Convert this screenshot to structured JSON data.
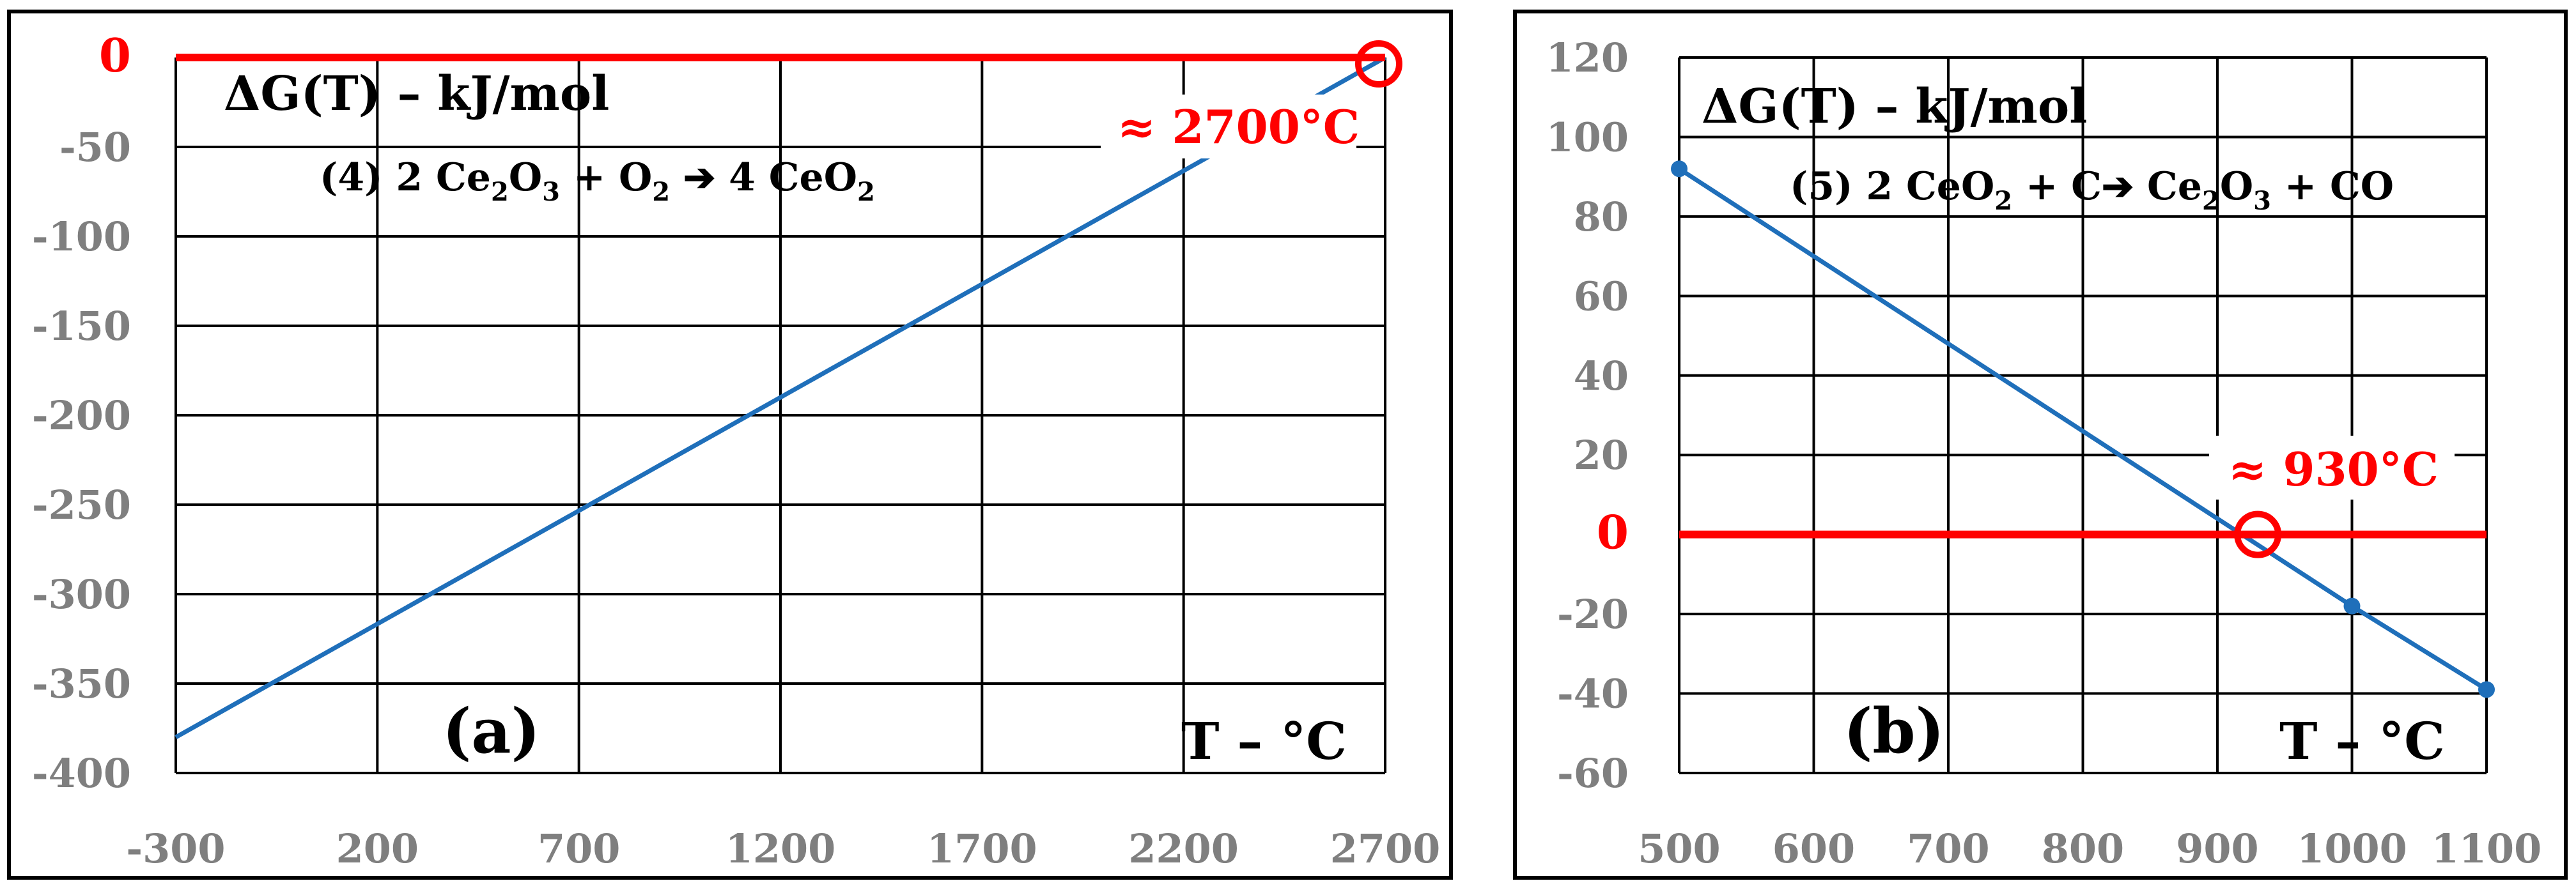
{
  "colors": {
    "series": "#1f6fba",
    "zero_line": "#ff0000",
    "grid": "#000000",
    "tick": "#7f7f7f",
    "annotation": "#ff0000"
  },
  "chart_data": [
    {
      "type": "line",
      "panel_label": "(a)",
      "ylabel": "ΔG(T) – kJ/mol",
      "xlabel": "T – °C",
      "equation": {
        "p1": "(4) 2 Ce",
        "s1": "2",
        "p2": "O",
        "s2": "3",
        "p3": " + O",
        "s3": "2",
        "p4": " ➔ 4 CeO",
        "s4": "2"
      },
      "annotation": "≈ 2700°C",
      "crossing_x": 2700,
      "xlim": [
        -300,
        2700
      ],
      "ylim": [
        -400,
        0
      ],
      "x_ticks": [
        "-300",
        "200",
        "700",
        "1200",
        "1700",
        "2200",
        "2700"
      ],
      "y_ticks": [
        "0",
        "-50",
        "-100",
        "-150",
        "-200",
        "-250",
        "-300",
        "-350",
        "-400"
      ],
      "series": [
        {
          "x": [
            -300,
            2700
          ],
          "y": [
            -380,
            0
          ]
        }
      ],
      "zero_line": true,
      "grid": true
    },
    {
      "type": "line",
      "panel_label": "(b)",
      "ylabel": "ΔG(T) – kJ/mol",
      "xlabel": "T – °C",
      "equation": {
        "p1": "(5) 2 CeO",
        "s1": "2",
        "p2": " + C➔ Ce",
        "s2": "2",
        "p3": "O",
        "s3": "3",
        "p4": " + CO",
        "s4": ""
      },
      "annotation": "≈ 930°C",
      "crossing_x": 930,
      "xlim": [
        500,
        1100
      ],
      "ylim": [
        -60,
        120
      ],
      "x_ticks": [
        "500",
        "600",
        "700",
        "800",
        "900",
        "1000",
        "1100"
      ],
      "y_ticks": [
        "120",
        "100",
        "80",
        "60",
        "40",
        "20",
        "0",
        "-20",
        "-40",
        "-60"
      ],
      "series": [
        {
          "x": [
            500,
            1000,
            1100
          ],
          "y": [
            92,
            -18,
            -39
          ]
        }
      ],
      "zero_line": true,
      "grid": true
    }
  ]
}
